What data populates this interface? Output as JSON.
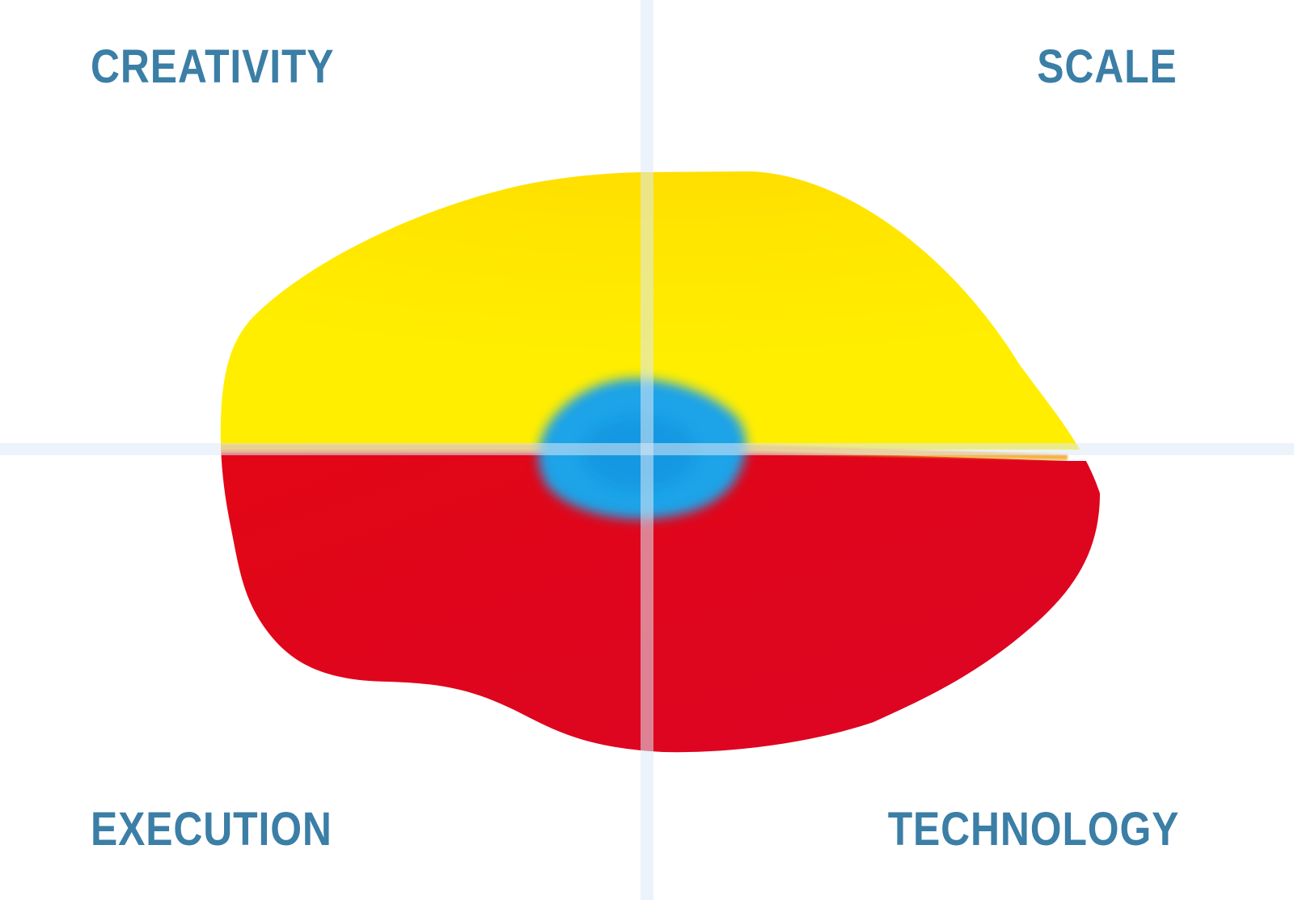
{
  "quadrants": {
    "top_left": "CREATIVITY",
    "top_right": "SCALE",
    "bottom_left": "EXECUTION",
    "bottom_right": "TECHNOLOGY"
  },
  "colors": {
    "label": "#3b7ea6",
    "axis": "#dde9f6",
    "upper_region": "#ffe800",
    "lower_region": "#e2061a",
    "center": "#1aa3e8"
  }
}
